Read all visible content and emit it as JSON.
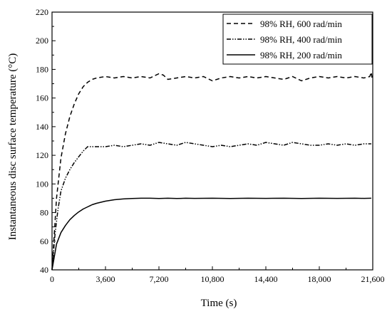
{
  "chart_data": {
    "type": "line",
    "xlabel": "Time (s)",
    "ylabel": "Instantaneous disc surface temperature (°C)",
    "xlim": [
      0,
      21600
    ],
    "ylim": [
      40,
      220
    ],
    "xticks": [
      0,
      3600,
      7200,
      10800,
      14400,
      18000,
      21600
    ],
    "xtick_labels": [
      "0",
      "3,600",
      "7,200",
      "10,800",
      "14,400",
      "18,000",
      "21,600"
    ],
    "yticks": [
      40,
      60,
      80,
      100,
      120,
      140,
      160,
      180,
      200,
      220
    ],
    "ytick_labels": [
      "40",
      "60",
      "80",
      "100",
      "120",
      "140",
      "160",
      "180",
      "200",
      "220"
    ],
    "grid": false,
    "legend_position": "top-right",
    "series": [
      {
        "name": "98% RH, 600 rad/min",
        "style": "dashed",
        "x": [
          0,
          300,
          600,
          900,
          1200,
          1500,
          1800,
          2100,
          2400,
          2700,
          3000,
          3600,
          4200,
          4800,
          5400,
          6000,
          6600,
          7200,
          7500,
          7800,
          8400,
          9000,
          9600,
          10200,
          10800,
          11400,
          12000,
          12600,
          13200,
          13800,
          14400,
          15000,
          15600,
          16200,
          16800,
          17400,
          18000,
          18600,
          19200,
          19800,
          20400,
          21000,
          21400,
          21500,
          21550
        ],
        "values": [
          40,
          90,
          118,
          135,
          147,
          156,
          163,
          168,
          171,
          173,
          174,
          175,
          174,
          175,
          174,
          175,
          174,
          177,
          176,
          173,
          174,
          175,
          174,
          175,
          172,
          174,
          175,
          174,
          175,
          174,
          175,
          174,
          173,
          175,
          172,
          174,
          175,
          174,
          175,
          174,
          175,
          174,
          175,
          178,
          174
        ]
      },
      {
        "name": "98% RH, 400 rad/min",
        "style": "dash-dot-dot",
        "x": [
          0,
          200,
          400,
          600,
          900,
          1200,
          1500,
          1800,
          2100,
          2400,
          2700,
          3000,
          3600,
          4200,
          4800,
          5400,
          6000,
          6600,
          7200,
          7800,
          8400,
          9000,
          9600,
          10200,
          10800,
          11400,
          12000,
          12600,
          13200,
          13800,
          14400,
          15000,
          15600,
          16200,
          16800,
          17400,
          18000,
          18600,
          19200,
          19800,
          20400,
          21000,
          21500
        ],
        "values": [
          40,
          65,
          82,
          95,
          104,
          110,
          115,
          119,
          123,
          126,
          126,
          126,
          126,
          127,
          126,
          127,
          128,
          127,
          129,
          128,
          127,
          129,
          128,
          127,
          126,
          127,
          126,
          127,
          128,
          127,
          129,
          128,
          127,
          129,
          128,
          127,
          127,
          128,
          127,
          128,
          127,
          128,
          128
        ]
      },
      {
        "name": "98% RH, 200 rad/min",
        "style": "solid",
        "x": [
          0,
          300,
          600,
          900,
          1200,
          1500,
          1800,
          2100,
          2400,
          2700,
          3000,
          3600,
          4200,
          4800,
          5400,
          6000,
          6600,
          7200,
          7800,
          8400,
          9000,
          9600,
          10800,
          12000,
          13200,
          14400,
          15600,
          16800,
          18000,
          19200,
          20400,
          21000,
          21500
        ],
        "values": [
          40,
          58,
          66,
          71,
          75,
          78,
          80.5,
          82.5,
          84,
          85.5,
          86.5,
          88,
          89,
          89.5,
          89.8,
          90,
          90,
          89.8,
          90,
          89.8,
          90,
          89.9,
          90,
          89.8,
          90,
          89.9,
          90,
          89.8,
          90,
          89.9,
          90,
          89.9,
          90
        ]
      }
    ]
  }
}
